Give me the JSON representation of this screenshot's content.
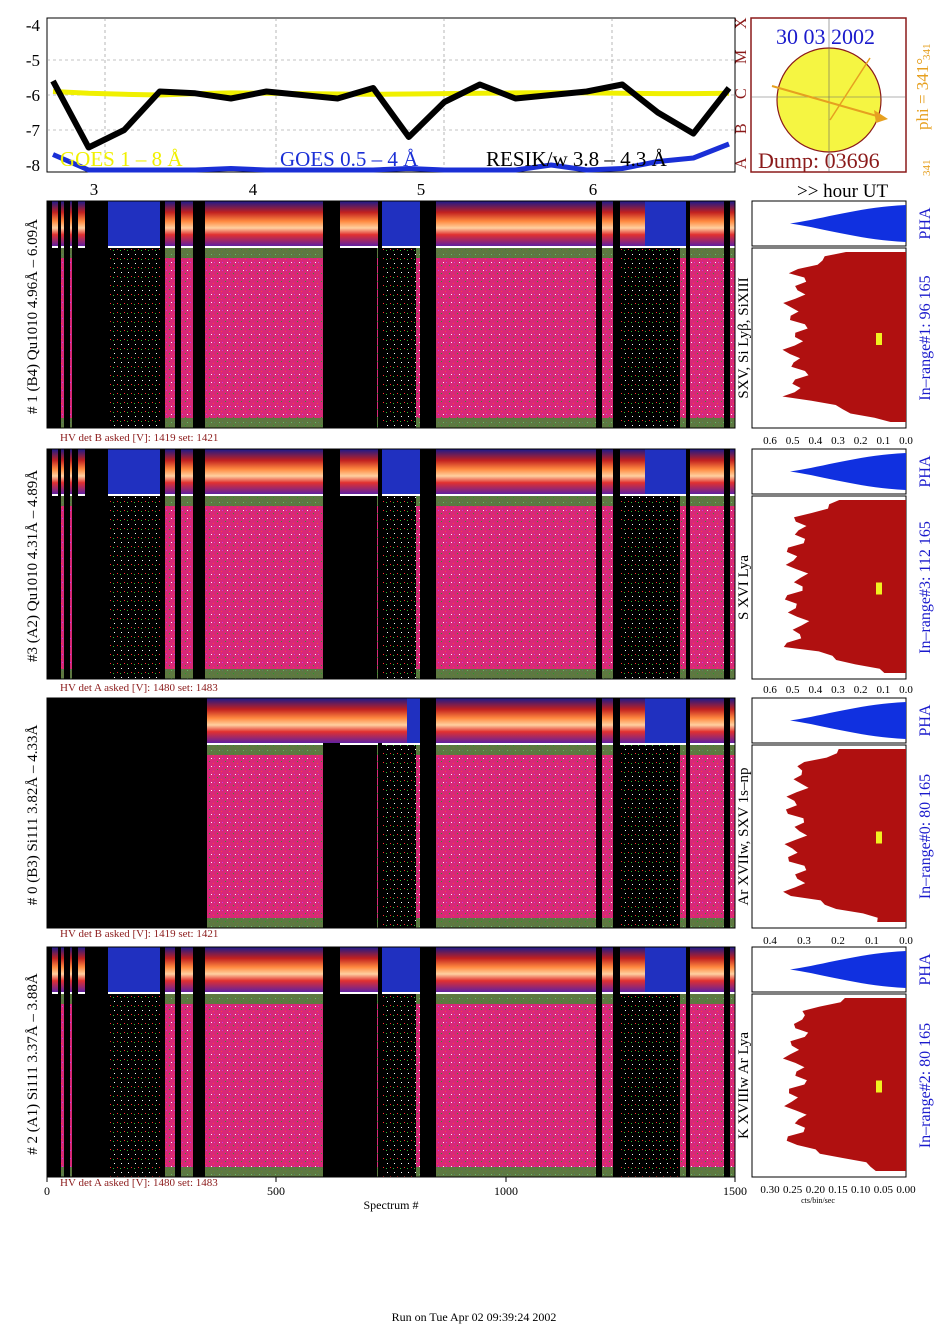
{
  "colors": {
    "goes_long": "#f0f000",
    "goes_short": "#1a2fd6",
    "resik": "#000000",
    "dark_red": "#8b1a1a",
    "hist_fill": "#b01010",
    "pha_fill": "#1030e0",
    "orange": "#e6a020",
    "blue_text": "#1a1acc",
    "sun_fill": "#f5f542"
  },
  "goes": {
    "y_ticks": [
      "-4",
      "-5",
      "-6",
      "-7",
      "-8"
    ],
    "class_letters": [
      "A",
      "B",
      "C",
      "M",
      "X"
    ],
    "hour_ticks": [
      "3",
      "4",
      "5",
      "6"
    ],
    "legend_long": "GOES 1 – 8 Å",
    "legend_short": "GOES 0.5 – 4 Å",
    "legend_resik": "RESIK/w 3.8 – 4.3 Å",
    "hour_label": ">> hour UT"
  },
  "sun_panel": {
    "date": "30 03 2002",
    "dump": "Dump: 03696",
    "phi": "phi = 341°",
    "phi_sub": "341",
    "phi_small": "341"
  },
  "detectors": [
    {
      "id": "d1",
      "left_label": "# 1 (B4) Qu1010 4.96Å – 6.09Å",
      "line_label": "SXV, Si Lyβ, SiXIII",
      "hv": "HV det B asked [V]:  1419 set:  1421",
      "range": "In–range#1:  96 165",
      "pha": "PHA",
      "hist_ticks": [
        "0.6",
        "0.5",
        "0.4",
        "0.3",
        "0.2",
        "0.1",
        "0.0"
      ],
      "hist_unit": "cts/bin/sec"
    },
    {
      "id": "d3",
      "left_label": "#3 (A2) Qu1010  4.31Å – 4.89Å",
      "line_label": "S XVI Lya",
      "hv": "HV det A asked [V]:  1480 set:  1483",
      "range": "In–range#3:  112 165",
      "pha": "PHA",
      "hist_ticks": [
        "0.6",
        "0.5",
        "0.4",
        "0.3",
        "0.2",
        "0.1",
        "0.0"
      ],
      "hist_unit": "cts/bin/sec"
    },
    {
      "id": "d0",
      "left_label": "# 0 (B3) Si111  3.82Å – 4.33Å",
      "line_label": "Ar XVIIw,  SXV 1s–np",
      "hv": "HV det B asked [V]:  1419 set:  1421",
      "range": "In–range#0:  80 165",
      "pha": "PHA",
      "hist_ticks": [
        "0.4",
        "0.3",
        "0.2",
        "0.1",
        "0.0"
      ],
      "hist_unit": "cts/bin/sec"
    },
    {
      "id": "d2",
      "left_label": "# 2 (A1) Si111  3.37Å – 3.88Å",
      "line_label": "K XVIIIw  Ar Lya",
      "hv": "HV det A asked [V]:  1480 set:  1483",
      "range": "In–range#2:   80 165",
      "pha": "PHA",
      "hist_ticks": [
        "0.30",
        "0.25",
        "0.20",
        "0.15",
        "0.10",
        "0.05",
        "0.00"
      ],
      "hist_unit": "cts/bin/sec"
    }
  ],
  "x_axis": {
    "ticks": [
      "0",
      "500",
      "1000",
      "1500"
    ],
    "label": "Spectrum #"
  },
  "footer": "Run on Tue Apr 02 09:39:24 2002",
  "chart_data": [
    {
      "type": "line",
      "title": "",
      "series": [
        {
          "name": "GOES 1 – 8 Å",
          "values": [
            -5.9,
            -5.95,
            -5.98,
            -6.0,
            -5.96,
            -5.94,
            -5.95,
            -5.96,
            -5.97,
            -5.98,
            -5.97,
            -5.96,
            -5.95,
            -5.94,
            -5.93,
            -5.94,
            -5.95,
            -5.96,
            -5.96,
            -5.95
          ]
        },
        {
          "name": "GOES 0.5 – 4 Å",
          "values": [
            -7.7,
            -8.2,
            -8.4,
            -8.3,
            -8.2,
            -8.1,
            -8.3,
            -8.3,
            -8.25,
            -8.2,
            -8.1,
            -8.2,
            -8.3,
            -8.15,
            -8.0,
            -8.3,
            -8.1,
            -7.9,
            -7.8,
            -7.4
          ]
        },
        {
          "name": "RESIK/w 3.8 – 4.3 Å",
          "values": [
            -5.6,
            -7.5,
            -7.0,
            -5.9,
            -5.95,
            -6.1,
            -5.9,
            -6.0,
            -6.1,
            -5.8,
            -7.2,
            -6.2,
            -5.7,
            -6.1,
            -6.0,
            -5.9,
            -5.7,
            -6.5,
            -7.1,
            -5.8
          ]
        }
      ],
      "ylim": [
        -8.2,
        -3.8
      ],
      "y_scale": "log10 flux"
    }
  ]
}
